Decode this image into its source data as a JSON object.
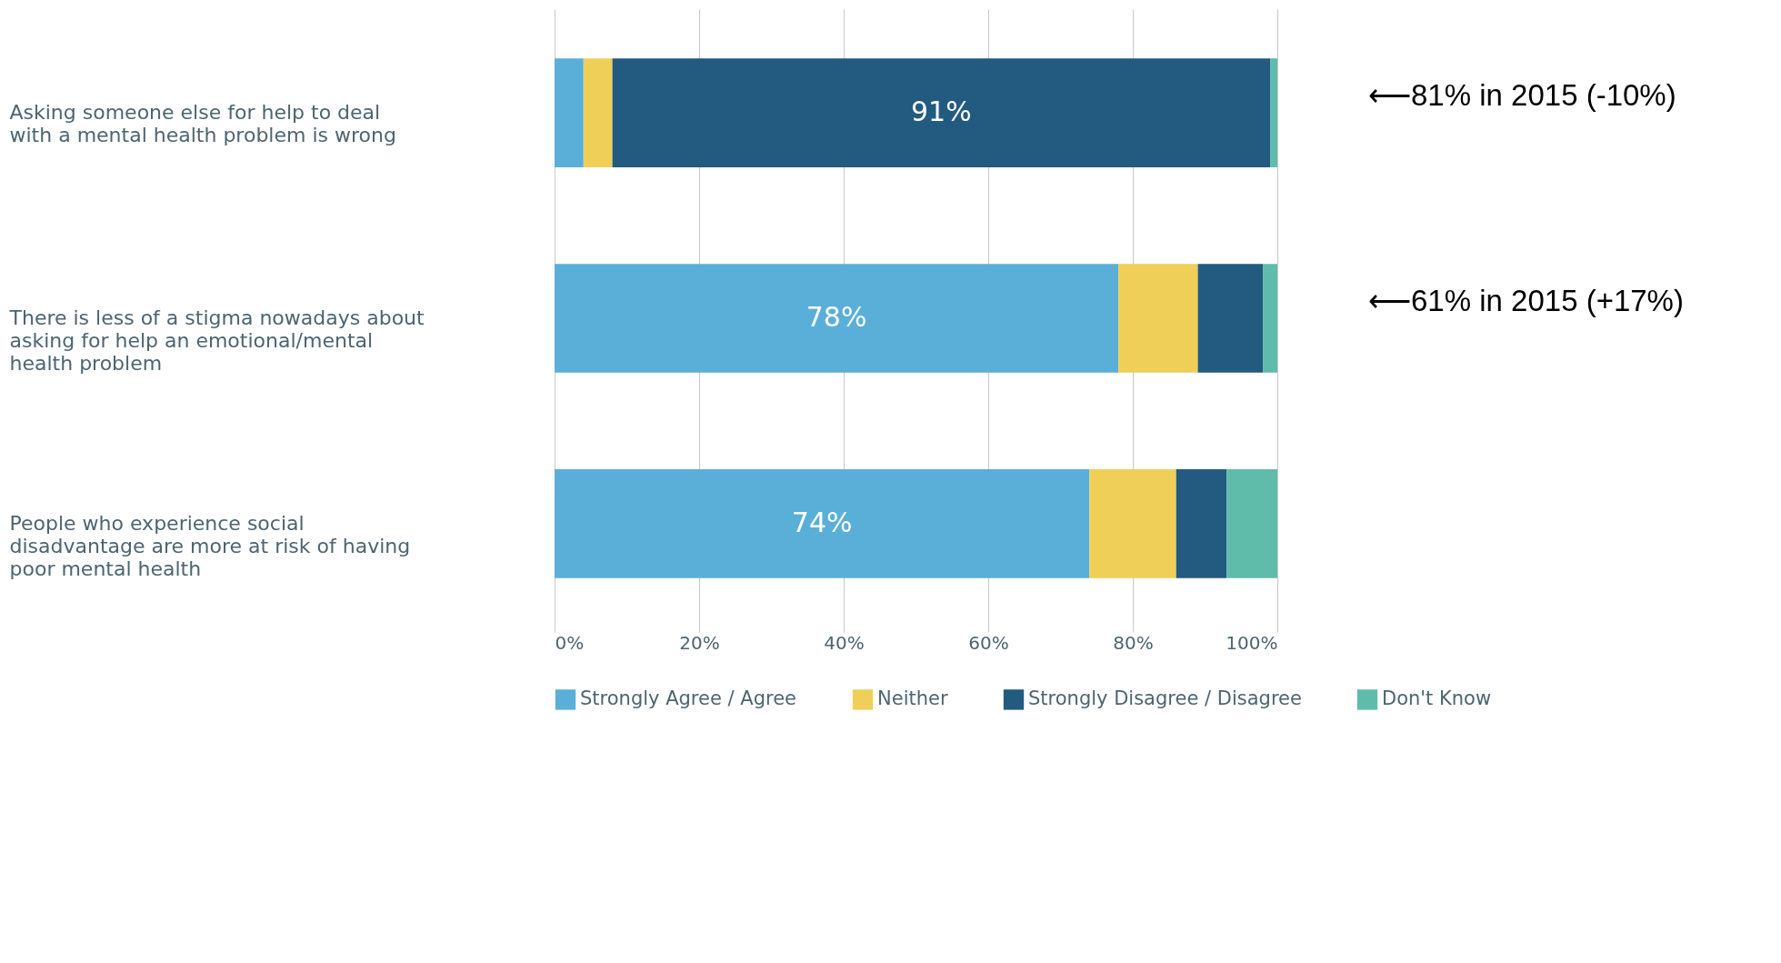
{
  "chart_data": {
    "type": "bar",
    "orientation": "horizontal",
    "stacked": true,
    "categories": [
      "Asking someone else for help to deal with a mental health problem is wrong",
      "There is less of a stigma nowadays about asking for help an emotional/mental health problem",
      "People who experience social disadvantage are more at risk of having poor mental health"
    ],
    "series": [
      {
        "name": "Strongly Agree / Agree",
        "color": "#5aafd8",
        "values": [
          4,
          78,
          74
        ],
        "value_labels": [
          null,
          "78%",
          "74%"
        ]
      },
      {
        "name": "Neither",
        "color": "#efcf58",
        "values": [
          4,
          11,
          12
        ]
      },
      {
        "name": "Strongly Disagree / Disagree",
        "color": "#235a80",
        "values": [
          91,
          9,
          7
        ],
        "value_labels": [
          "91%",
          null,
          null
        ]
      },
      {
        "name": "Don't Know",
        "color": "#5fbcaa",
        "values": [
          1,
          2,
          7
        ]
      }
    ],
    "xlim": [
      0,
      100
    ],
    "xticks": [
      {
        "value": 0,
        "label": "0%"
      },
      {
        "value": 20,
        "label": "20%"
      },
      {
        "value": 40,
        "label": "40%"
      },
      {
        "value": 60,
        "label": "60%"
      },
      {
        "value": 80,
        "label": "80%"
      },
      {
        "value": 100,
        "label": "100%"
      }
    ],
    "grid": "x",
    "legend": "bottom",
    "annotations": [
      "⟵81% in 2015 (-10%)",
      "⟵61% in 2015 (+17%)"
    ]
  }
}
